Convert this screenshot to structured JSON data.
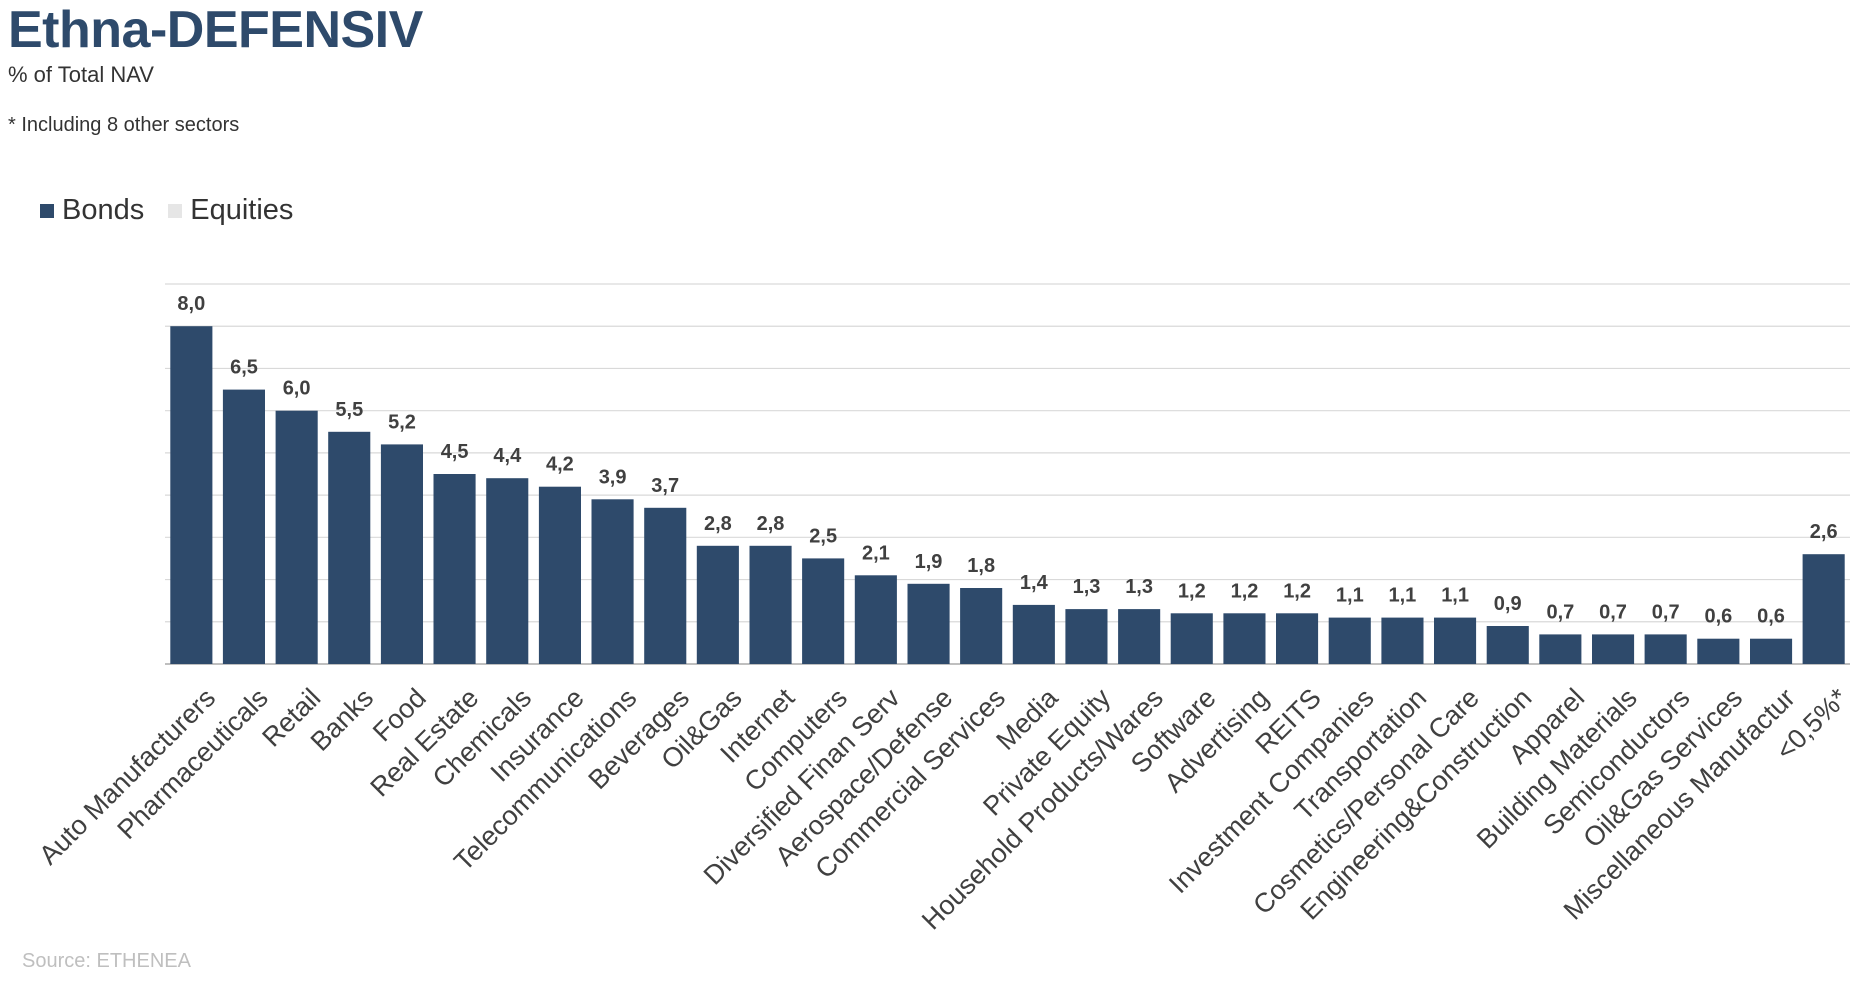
{
  "header": {
    "title": "Ethna-DEFENSIV",
    "subtitle": "% of Total NAV",
    "note": "* Including 8 other sectors"
  },
  "legend": {
    "items": [
      {
        "label": "Bonds",
        "color": "#2e4a6b"
      },
      {
        "label": "Equities",
        "color": "#e6e6e6"
      }
    ]
  },
  "source": "Source: ETHENEA",
  "chart_data": {
    "type": "bar",
    "categories": [
      "Auto Manufacturers",
      "Pharmaceuticals",
      "Retail",
      "Banks",
      "Food",
      "Real Estate",
      "Chemicals",
      "Insurance",
      "Telecommunications",
      "Beverages",
      "Oil&Gas",
      "Internet",
      "Computers",
      "Diversified Finan Serv",
      "Aerospace/Defense",
      "Commercial Services",
      "Media",
      "Private Equity",
      "Household Products/Wares",
      "Software",
      "Advertising",
      "REITS",
      "Investment Companies",
      "Transportation",
      "Cosmetics/Personal Care",
      "Engineering&Construction",
      "Apparel",
      "Building Materials",
      "Semiconductors",
      "Oil&Gas Services",
      "Miscellaneous Manufactur",
      "<0,5%*"
    ],
    "values": [
      8.0,
      6.5,
      6.0,
      5.5,
      5.2,
      4.5,
      4.4,
      4.2,
      3.9,
      3.7,
      2.8,
      2.8,
      2.5,
      2.1,
      1.9,
      1.8,
      1.4,
      1.3,
      1.3,
      1.2,
      1.2,
      1.2,
      1.1,
      1.1,
      1.1,
      0.9,
      0.7,
      0.7,
      0.7,
      0.6,
      0.6,
      2.6
    ],
    "value_labels": [
      "8,0",
      "6,5",
      "6,0",
      "5,5",
      "5,2",
      "4,5",
      "4,4",
      "4,2",
      "3,9",
      "3,7",
      "2,8",
      "2,8",
      "2,5",
      "2,1",
      "1,9",
      "1,8",
      "1,4",
      "1,3",
      "1,3",
      "1,2",
      "1,2",
      "1,2",
      "1,1",
      "1,1",
      "1,1",
      "0,9",
      "0,7",
      "0,7",
      "0,7",
      "0,6",
      "0,6",
      "2,6"
    ],
    "series": [
      {
        "name": "Bonds",
        "color": "#2e4a6b"
      },
      {
        "name": "Equities",
        "color": "#e6e6e6"
      }
    ],
    "ylim": [
      0,
      9
    ],
    "grid": true,
    "legend_position": "top-left"
  }
}
